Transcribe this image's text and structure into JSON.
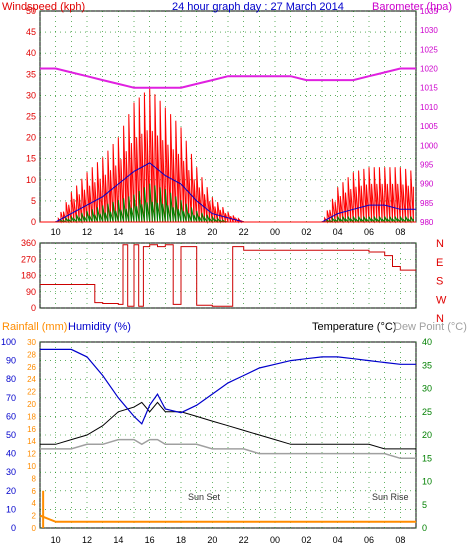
{
  "colors": {
    "wind": "#ff0000",
    "wind_avg": "#0000cc",
    "wind_gust_low": "#008000",
    "barometer": "#e020e0",
    "direction": "#cc0000",
    "rain": "#ff8c00",
    "humidity": "#0000cc",
    "temperature": "#000000",
    "dewpoint": "#a0a0a0",
    "axis_wind": "#e00000",
    "axis_baro": "#cc00cc",
    "axis_temp": "#008000",
    "grid": "#008000"
  },
  "header": {
    "title": "24 hour graph day : 27 March 2014",
    "left_label": "Windspeed (kph)",
    "right_label": "Barometer (hpa)"
  },
  "bottom_header": {
    "rainfall_label": "Rainfall (mm)",
    "humidity_label": "Humidity (%)",
    "temperature_label": "Temperature (°C)",
    "dewpoint_label": "Dew Point (°C)"
  },
  "annotations": {
    "sun_set": "Sun Set",
    "sun_rise": "Sun Rise"
  },
  "x_ticks": [
    "10",
    "12",
    "14",
    "16",
    "18",
    "20",
    "22",
    "00",
    "02",
    "04",
    "06",
    "08"
  ],
  "chart_data": [
    {
      "type": "line",
      "title": "24 hour graph day : 27 March 2014",
      "ylabel": "Windspeed (kph)",
      "y2label": "Barometer (hpa)",
      "ylim": [
        0,
        50
      ],
      "y2lim": [
        980,
        1035
      ],
      "yticks": [
        0,
        5,
        10,
        15,
        20,
        25,
        30,
        35,
        40,
        45,
        50
      ],
      "y2ticks": [
        980,
        985,
        990,
        995,
        1000,
        1005,
        1010,
        1015,
        1020,
        1025,
        1030,
        1035
      ],
      "x": [
        9,
        10,
        11,
        12,
        13,
        14,
        15,
        16,
        17,
        18,
        19,
        20,
        21,
        22,
        23,
        24,
        25,
        26,
        27,
        28,
        29,
        30,
        31,
        32,
        33
      ],
      "series": [
        {
          "name": "Barometer",
          "axis": "right",
          "values": [
            1020,
            1020,
            1019,
            1018,
            1017,
            1016,
            1015,
            1015,
            1015,
            1015,
            1016,
            1017,
            1018,
            1018,
            1018,
            1018,
            1018,
            1017,
            1017,
            1017,
            1017,
            1018,
            1019,
            1020,
            1020
          ]
        },
        {
          "name": "Wind gust",
          "values": [
            0,
            0,
            6,
            10,
            13,
            17,
            24,
            27,
            23,
            19,
            11,
            5,
            2,
            0,
            0,
            0,
            0,
            0,
            0,
            7,
            10,
            11,
            11,
            11,
            10
          ]
        },
        {
          "name": "Wind average",
          "values": [
            0,
            0,
            2,
            4,
            6,
            9,
            12,
            14,
            11,
            9,
            5,
            2,
            1,
            0,
            0,
            0,
            0,
            0,
            0,
            2,
            3,
            4,
            4,
            3,
            3
          ]
        },
        {
          "name": "Wind low",
          "values": [
            0,
            0,
            1,
            2,
            3,
            4,
            5,
            7,
            6,
            4,
            2,
            1,
            0,
            0,
            0,
            0,
            0,
            0,
            0,
            1,
            1,
            1,
            1,
            1,
            1
          ]
        }
      ]
    },
    {
      "type": "line",
      "ylabel": "Direction",
      "ylim": [
        0,
        360
      ],
      "yticks": [
        0,
        90,
        180,
        270,
        360
      ],
      "right_labels": [
        "N",
        "W",
        "S",
        "E",
        "N"
      ],
      "x": [
        9,
        10,
        11,
        12,
        12.5,
        13,
        14,
        14.3,
        14.6,
        15,
        15.3,
        15.6,
        16,
        16.5,
        17,
        17.5,
        18,
        19,
        20,
        21,
        21.3,
        22,
        24,
        26,
        28,
        30,
        31,
        31.5,
        32,
        33
      ],
      "series": [
        {
          "name": "Wind direction",
          "values": [
            130,
            130,
            130,
            130,
            30,
            25,
            20,
            350,
            10,
            350,
            10,
            340,
            350,
            340,
            350,
            20,
            340,
            15,
            10,
            10,
            340,
            320,
            320,
            320,
            320,
            310,
            290,
            230,
            210,
            210
          ]
        }
      ]
    },
    {
      "type": "line",
      "ylabel": "Humidity (%)",
      "y_left_outer_label": "Rainfall (mm)",
      "y2label": "Temperature (°C)",
      "ylim": [
        0,
        100
      ],
      "y_outer_lim": [
        0,
        30
      ],
      "y2lim": [
        0,
        40
      ],
      "yticks": [
        0,
        10,
        20,
        30,
        40,
        50,
        60,
        70,
        80,
        90,
        100
      ],
      "y_outer_ticks": [
        0,
        2,
        4,
        6,
        8,
        10,
        12,
        14,
        16,
        18,
        20,
        22,
        24,
        26,
        28,
        30
      ],
      "y2ticks": [
        0,
        5,
        10,
        15,
        20,
        25,
        30,
        35,
        40
      ],
      "x": [
        9,
        10,
        11,
        12,
        13,
        14,
        15,
        15.5,
        16,
        16.5,
        17,
        18,
        19,
        20,
        21,
        22,
        23,
        24,
        25,
        26,
        27,
        28,
        29,
        30,
        31,
        32,
        33
      ],
      "series": [
        {
          "name": "Humidity",
          "values": [
            96,
            96,
            96,
            92,
            82,
            70,
            60,
            56,
            66,
            72,
            64,
            62,
            66,
            72,
            78,
            82,
            86,
            88,
            90,
            91,
            92,
            92,
            91,
            90,
            89,
            88,
            88
          ]
        },
        {
          "name": "Temperature",
          "axis": "right",
          "values": [
            18,
            18,
            19,
            20,
            22,
            25,
            26,
            27,
            25,
            27,
            25,
            25,
            24,
            23,
            22,
            21,
            20,
            19,
            18,
            18,
            18,
            18,
            18,
            18,
            17,
            17,
            17
          ]
        },
        {
          "name": "Dew Point",
          "axis": "right",
          "values": [
            17,
            17,
            17,
            18,
            18,
            19,
            19,
            18,
            19,
            19,
            18,
            18,
            18,
            17,
            17,
            17,
            16,
            16,
            16,
            16,
            16,
            16,
            16,
            16,
            16,
            15,
            15
          ]
        },
        {
          "name": "Rainfall",
          "axis": "outer_left",
          "values": [
            2,
            1,
            1,
            1,
            1,
            1,
            1,
            1,
            1,
            1,
            1,
            1,
            1,
            1,
            1,
            1,
            1,
            1,
            1,
            1,
            1,
            1,
            1,
            1,
            1,
            1,
            1
          ]
        }
      ]
    }
  ]
}
